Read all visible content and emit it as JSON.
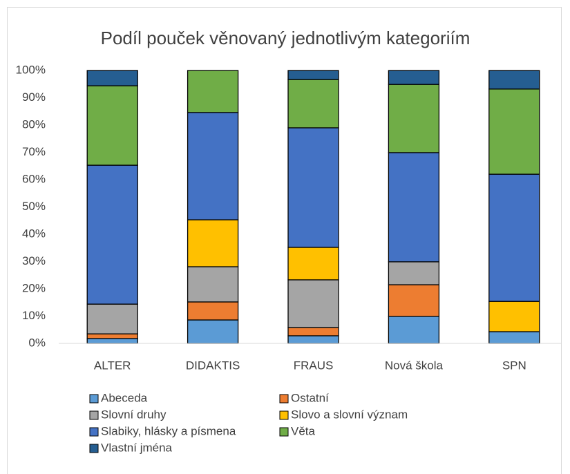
{
  "chart_data": {
    "type": "stacked_bar",
    "title": "Podíl pouček věnovaný jednotlivým kategoriím",
    "categories": [
      "ALTER",
      "DIDAKTIS",
      "FRAUS",
      "Nová škola",
      "SPN"
    ],
    "series": [
      {
        "name": "Abeceda",
        "color": "#5b9bd5",
        "values": [
          1.8,
          8.6,
          2.8,
          9.9,
          4.3
        ]
      },
      {
        "name": "Ostatní",
        "color": "#ed7d31",
        "values": [
          1.7,
          6.6,
          3.0,
          11.6,
          0
        ]
      },
      {
        "name": "Slovní druhy",
        "color": "#a5a5a5",
        "values": [
          10.9,
          12.9,
          17.5,
          8.4,
          0
        ]
      },
      {
        "name": "Slovo a slovní význam",
        "color": "#ffc000",
        "values": [
          0,
          17.2,
          11.9,
          0,
          11.1
        ]
      },
      {
        "name": "Slabiky, hlásky a písmena",
        "color": "#4472c4",
        "values": [
          50.9,
          39.3,
          43.8,
          40.0,
          46.6
        ]
      },
      {
        "name": "Věta",
        "color": "#70ad47",
        "values": [
          29.1,
          15.4,
          17.7,
          25.0,
          31.2
        ]
      },
      {
        "name": "Vlastní jména",
        "color": "#255e91",
        "values": [
          5.6,
          0,
          3.3,
          5.1,
          6.8
        ]
      }
    ],
    "ylim": [
      0,
      100
    ],
    "yticks": [
      {
        "value": 0,
        "label": "0%"
      },
      {
        "value": 10,
        "label": "10%"
      },
      {
        "value": 20,
        "label": "20%"
      },
      {
        "value": 30,
        "label": "30%"
      },
      {
        "value": 40,
        "label": "40%"
      },
      {
        "value": 50,
        "label": "50%"
      },
      {
        "value": 60,
        "label": "60%"
      },
      {
        "value": 70,
        "label": "70%"
      },
      {
        "value": 80,
        "label": "80%"
      },
      {
        "value": 90,
        "label": "90%"
      },
      {
        "value": 100,
        "label": "100%"
      }
    ],
    "grid": false,
    "legend": "bottom"
  }
}
